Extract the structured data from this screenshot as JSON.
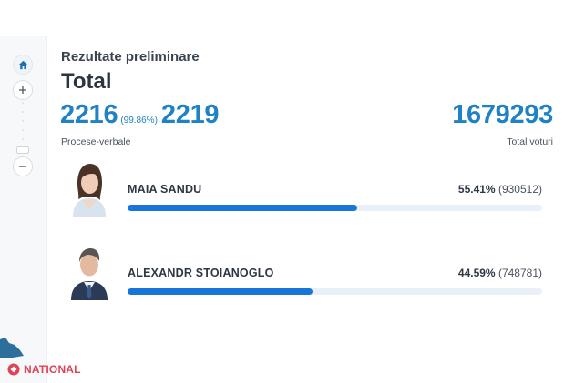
{
  "header": {
    "subtitle": "Rezultate preliminare",
    "title": "Total"
  },
  "stats": {
    "processed": "2216",
    "processed_pct": "(99.86%)",
    "total_protocols": "2219",
    "protocols_label": "Procese-verbale",
    "total_votes": "1679293",
    "votes_label": "Total voturi"
  },
  "candidates": [
    {
      "name": "MAIA SANDU",
      "percent": "55.41%",
      "votes": "(930512)",
      "share": 55.41
    },
    {
      "name": "ALEXANDR STOIANOGLO",
      "percent": "44.59%",
      "votes": "(748781)",
      "share": 44.59
    }
  ],
  "watermark": {
    "text": "NATIONAL"
  },
  "colors": {
    "accent": "#1f82c4",
    "bar": "#1976d8",
    "bar_track": "#e9f0f8",
    "watermark": "#e04454"
  },
  "icons": {
    "home": "home-icon",
    "zoom_in": "plus-icon",
    "zoom_out": "minus-icon"
  }
}
